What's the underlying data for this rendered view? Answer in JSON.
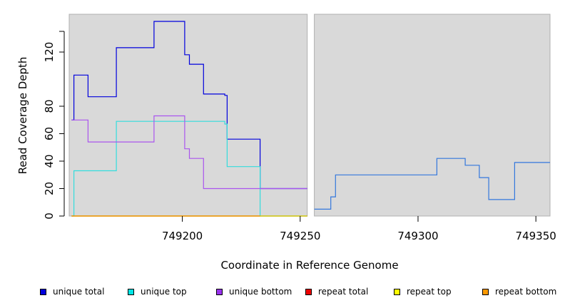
{
  "chart_data": {
    "type": "line",
    "title": "",
    "xlabel": "Coordinate in Reference Genome",
    "ylabel": "Read Coverage Depth",
    "xlim": [
      749152,
      749356
    ],
    "ylim": [
      0,
      141
    ],
    "xticks": [
      749200,
      749250,
      749300,
      749350
    ],
    "xtick_labels": [
      "749200",
      "749250",
      "749300",
      "749350"
    ],
    "yticks": [
      0,
      20,
      40,
      60,
      80,
      120
    ],
    "ytick_labels": [
      "0",
      "20",
      "40",
      "60",
      "80",
      "120"
    ],
    "grid": false,
    "legend_position": "bottom",
    "panel_background": "#d9d9d9",
    "gap_between_panels": [
      749253,
      749256
    ],
    "series": [
      {
        "name": "unique total",
        "color": "#0000dd",
        "x": [
          749153,
          749154,
          749160,
          749172,
          749188,
          749201,
          749203,
          749209,
          749218,
          749219,
          749233,
          749253
        ],
        "y": [
          70,
          103,
          87,
          123,
          141,
          118,
          111,
          89,
          88,
          56,
          20,
          20
        ]
      },
      {
        "name": "unique top",
        "color": "#33dddd",
        "x": [
          749153,
          749154,
          749172,
          749218,
          749219,
          749233,
          749253
        ],
        "y": [
          0,
          33,
          69,
          67,
          36,
          0,
          0
        ]
      },
      {
        "name": "unique bottom",
        "color": "#aa55ee",
        "x": [
          749153,
          749160,
          749188,
          749201,
          749203,
          749209,
          749253
        ],
        "y": [
          70,
          54,
          73,
          49,
          42,
          20,
          20
        ]
      },
      {
        "name": "repeat total",
        "color": "#dd0000",
        "x": [
          749153,
          749253
        ],
        "y": [
          0,
          0
        ]
      },
      {
        "name": "repeat top",
        "color": "#dddd00",
        "x": [
          749153,
          749253
        ],
        "y": [
          0,
          0
        ]
      },
      {
        "name": "repeat bottom",
        "color": "#ee9900",
        "x": [
          749153,
          749233
        ],
        "y": [
          0,
          0
        ]
      },
      {
        "name": "",
        "color": "#3377dd",
        "x": [
          749256,
          749263,
          749265,
          749308,
          749320,
          749326,
          749330,
          749341,
          749356
        ],
        "y": [
          5,
          14,
          30,
          42,
          37,
          28,
          12,
          39,
          39
        ]
      }
    ]
  },
  "legend": {
    "items": [
      {
        "label": "unique total",
        "color": "#0000dd"
      },
      {
        "label": "unique top",
        "color": "#00e5e5"
      },
      {
        "label": "unique bottom",
        "color": "#9933ee"
      },
      {
        "label": "repeat total",
        "color": "#ee0000"
      },
      {
        "label": "repeat top",
        "color": "#ffff00"
      },
      {
        "label": "repeat bottom",
        "color": "#ff9900"
      }
    ]
  }
}
